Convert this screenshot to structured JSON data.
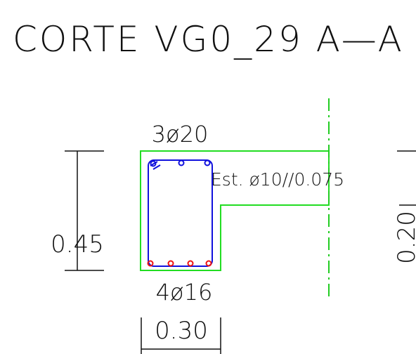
{
  "title": "CORTE VG0_29 A—A",
  "labels": {
    "top_bars": "3ø20",
    "stirrups": "Est. ø10//0.075",
    "bottom_bars": "4ø16",
    "height": "0.45",
    "width": "0.30",
    "flange": "0.20"
  }
}
